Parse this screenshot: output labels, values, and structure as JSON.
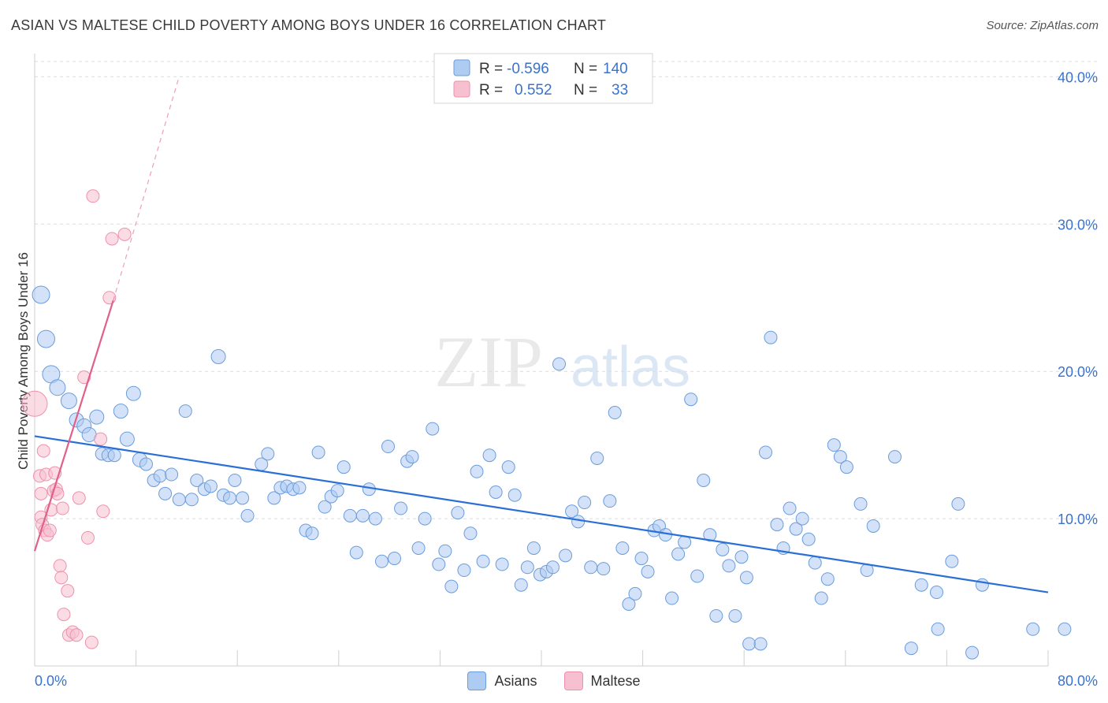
{
  "header": {
    "title": "ASIAN VS MALTESE CHILD POVERTY AMONG BOYS UNDER 16 CORRELATION CHART",
    "source": "Source: ZipAtlas.com"
  },
  "watermark": {
    "zip": "ZIP",
    "atlas": "atlas"
  },
  "legend_stats": [
    {
      "r_label": "R =",
      "r_value": "-0.596",
      "n_label": "N =",
      "n_value": "140"
    },
    {
      "r_label": "R =",
      "r_value": "0.552",
      "n_label": "N =",
      "n_value": "33"
    }
  ],
  "legend_bottom": [
    {
      "label": "Asians"
    },
    {
      "label": "Maltese"
    }
  ],
  "colors": {
    "asian_fill": "#aecbf2",
    "asian_stroke": "#6a9ddc",
    "asian_line": "#2a6fd6",
    "maltese_fill": "#f7c0d0",
    "maltese_stroke": "#ee91ad",
    "maltese_line": "#e0608a",
    "tick_text": "#3a73cc",
    "grid": "#dcdcdc"
  },
  "chart_data": {
    "type": "scatter",
    "title": "ASIAN VS MALTESE CHILD POVERTY AMONG BOYS UNDER 16 CORRELATION CHART",
    "xlabel": "",
    "ylabel": "Child Poverty Among Boys Under 16",
    "xlim": [
      0,
      80
    ],
    "ylim": [
      0,
      42
    ],
    "x_tick_labels": [
      "0.0%",
      "80.0%"
    ],
    "y_ticks": [
      10,
      20,
      30,
      40
    ],
    "y_tick_labels": [
      "10.0%",
      "20.0%",
      "30.0%",
      "40.0%"
    ],
    "grid": "horizontal dashed",
    "legend": "top-center and bottom",
    "series": [
      {
        "name": "Asians",
        "trend": {
          "x": [
            0,
            80
          ],
          "y": [
            15.6,
            5.0
          ]
        },
        "points": [
          [
            0.5,
            25.2,
            11
          ],
          [
            0.9,
            22.2,
            11
          ],
          [
            1.3,
            19.8,
            11
          ],
          [
            1.8,
            18.9,
            10
          ],
          [
            2.7,
            18.0,
            10
          ],
          [
            3.3,
            16.7,
            9
          ],
          [
            3.9,
            16.3,
            9
          ],
          [
            4.3,
            15.7,
            9
          ],
          [
            4.9,
            16.9,
            9
          ],
          [
            5.3,
            14.4,
            8
          ],
          [
            5.8,
            14.3,
            8
          ],
          [
            6.3,
            14.3,
            8
          ],
          [
            6.8,
            17.3,
            9
          ],
          [
            7.3,
            15.4,
            9
          ],
          [
            7.8,
            18.5,
            9
          ],
          [
            8.3,
            14.0,
            9
          ],
          [
            8.8,
            13.7,
            8
          ],
          [
            9.4,
            12.6,
            8
          ],
          [
            9.9,
            12.9,
            8
          ],
          [
            10.3,
            11.7,
            8
          ],
          [
            10.8,
            13.0,
            8
          ],
          [
            11.4,
            11.3,
            8
          ],
          [
            11.9,
            17.3,
            8
          ],
          [
            12.4,
            11.3,
            8
          ],
          [
            12.8,
            12.6,
            8
          ],
          [
            13.4,
            12.0,
            8
          ],
          [
            13.9,
            12.2,
            8
          ],
          [
            14.5,
            21.0,
            9
          ],
          [
            14.9,
            11.6,
            8
          ],
          [
            15.4,
            11.4,
            8
          ],
          [
            15.8,
            12.6,
            8
          ],
          [
            16.4,
            11.4,
            8
          ],
          [
            16.8,
            10.2,
            8
          ],
          [
            17.9,
            13.7,
            8
          ],
          [
            18.4,
            14.4,
            8
          ],
          [
            18.9,
            11.4,
            8
          ],
          [
            19.4,
            12.1,
            8
          ],
          [
            19.9,
            12.2,
            8
          ],
          [
            20.4,
            12.0,
            8
          ],
          [
            20.9,
            12.1,
            8
          ],
          [
            21.4,
            9.2,
            8
          ],
          [
            21.9,
            9.0,
            8
          ],
          [
            22.4,
            14.5,
            8
          ],
          [
            22.9,
            10.8,
            8
          ],
          [
            23.4,
            11.5,
            8
          ],
          [
            23.9,
            11.9,
            8
          ],
          [
            24.4,
            13.5,
            8
          ],
          [
            24.9,
            10.2,
            8
          ],
          [
            25.4,
            7.7,
            8
          ],
          [
            25.9,
            10.2,
            8
          ],
          [
            26.4,
            12.0,
            8
          ],
          [
            26.9,
            10.0,
            8
          ],
          [
            27.4,
            7.1,
            8
          ],
          [
            27.9,
            14.9,
            8
          ],
          [
            28.4,
            7.3,
            8
          ],
          [
            28.9,
            10.7,
            8
          ],
          [
            29.4,
            13.9,
            8
          ],
          [
            29.8,
            14.2,
            8
          ],
          [
            30.3,
            8.0,
            8
          ],
          [
            30.8,
            10.0,
            8
          ],
          [
            31.4,
            16.1,
            8
          ],
          [
            31.9,
            6.9,
            8
          ],
          [
            32.4,
            7.8,
            8
          ],
          [
            32.9,
            5.4,
            8
          ],
          [
            33.4,
            10.4,
            8
          ],
          [
            33.9,
            6.5,
            8
          ],
          [
            34.4,
            9.0,
            8
          ],
          [
            34.9,
            13.2,
            8
          ],
          [
            35.4,
            7.1,
            8
          ],
          [
            35.9,
            14.3,
            8
          ],
          [
            36.4,
            11.8,
            8
          ],
          [
            36.9,
            6.9,
            8
          ],
          [
            37.4,
            13.5,
            8
          ],
          [
            37.9,
            11.6,
            8
          ],
          [
            38.4,
            5.5,
            8
          ],
          [
            38.9,
            6.7,
            8
          ],
          [
            39.4,
            8.0,
            8
          ],
          [
            39.9,
            6.2,
            8
          ],
          [
            40.4,
            6.4,
            8
          ],
          [
            40.9,
            6.7,
            8
          ],
          [
            41.4,
            20.5,
            8
          ],
          [
            41.9,
            7.5,
            8
          ],
          [
            42.4,
            10.5,
            8
          ],
          [
            42.9,
            9.8,
            8
          ],
          [
            43.4,
            11.1,
            8
          ],
          [
            43.9,
            6.7,
            8
          ],
          [
            44.4,
            14.1,
            8
          ],
          [
            44.9,
            6.6,
            8
          ],
          [
            45.4,
            11.2,
            8
          ],
          [
            45.8,
            17.2,
            8
          ],
          [
            46.4,
            8.0,
            8
          ],
          [
            46.9,
            4.2,
            8
          ],
          [
            47.4,
            4.9,
            8
          ],
          [
            47.9,
            7.3,
            8
          ],
          [
            48.4,
            6.4,
            8
          ],
          [
            48.9,
            9.2,
            8
          ],
          [
            49.3,
            9.5,
            8
          ],
          [
            49.8,
            8.9,
            8
          ],
          [
            50.3,
            4.6,
            8
          ],
          [
            50.8,
            7.6,
            8
          ],
          [
            51.3,
            8.4,
            8
          ],
          [
            51.8,
            18.1,
            8
          ],
          [
            52.3,
            6.1,
            8
          ],
          [
            52.8,
            12.6,
            8
          ],
          [
            53.3,
            8.9,
            8
          ],
          [
            53.8,
            3.4,
            8
          ],
          [
            54.3,
            7.9,
            8
          ],
          [
            54.8,
            6.8,
            8
          ],
          [
            55.3,
            3.4,
            8
          ],
          [
            55.8,
            7.4,
            8
          ],
          [
            56.2,
            6.0,
            8
          ],
          [
            56.4,
            1.5,
            8
          ],
          [
            57.3,
            1.5,
            8
          ],
          [
            57.7,
            14.5,
            8
          ],
          [
            58.1,
            22.3,
            8
          ],
          [
            58.6,
            9.6,
            8
          ],
          [
            59.1,
            8.0,
            8
          ],
          [
            59.6,
            10.7,
            8
          ],
          [
            60.1,
            9.3,
            8
          ],
          [
            60.6,
            10.0,
            8
          ],
          [
            61.1,
            8.6,
            8
          ],
          [
            61.6,
            7.0,
            8
          ],
          [
            62.1,
            4.6,
            8
          ],
          [
            62.6,
            5.9,
            8
          ],
          [
            63.1,
            15.0,
            8
          ],
          [
            63.6,
            14.2,
            8
          ],
          [
            64.1,
            13.5,
            8
          ],
          [
            65.2,
            11.0,
            8
          ],
          [
            65.7,
            6.5,
            8
          ],
          [
            66.2,
            9.5,
            8
          ],
          [
            67.9,
            14.2,
            8
          ],
          [
            69.2,
            1.2,
            8
          ],
          [
            70.0,
            5.5,
            8
          ],
          [
            71.3,
            2.5,
            8
          ],
          [
            71.2,
            5.0,
            8
          ],
          [
            72.4,
            7.1,
            8
          ],
          [
            72.9,
            11.0,
            8
          ],
          [
            74.0,
            0.9,
            8
          ],
          [
            74.8,
            5.5,
            8
          ],
          [
            78.8,
            2.5,
            8
          ],
          [
            81.3,
            2.5,
            8
          ]
        ]
      },
      {
        "name": "Maltese",
        "trend": {
          "x": [
            0,
            6.2
          ],
          "y": [
            7.8,
            24.8
          ]
        },
        "trend_extension": {
          "x": [
            6.2,
            11.4
          ],
          "y": [
            24.8,
            40.0
          ]
        },
        "points": [
          [
            0.0,
            17.8,
            16
          ],
          [
            0.4,
            12.9,
            8
          ],
          [
            0.5,
            11.7,
            8
          ],
          [
            0.5,
            10.1,
            8
          ],
          [
            0.6,
            9.6,
            8
          ],
          [
            0.7,
            14.6,
            8
          ],
          [
            0.8,
            9.2,
            8
          ],
          [
            0.9,
            13.0,
            8
          ],
          [
            1.0,
            8.9,
            8
          ],
          [
            1.2,
            9.2,
            8
          ],
          [
            1.3,
            10.6,
            8
          ],
          [
            1.5,
            11.9,
            8
          ],
          [
            1.6,
            13.1,
            8
          ],
          [
            1.7,
            12.0,
            8
          ],
          [
            1.8,
            11.7,
            8
          ],
          [
            2.0,
            6.8,
            8
          ],
          [
            2.1,
            6.0,
            8
          ],
          [
            2.2,
            10.7,
            8
          ],
          [
            2.3,
            3.5,
            8
          ],
          [
            2.6,
            5.1,
            8
          ],
          [
            2.7,
            2.1,
            8
          ],
          [
            3.0,
            2.3,
            8
          ],
          [
            3.3,
            2.1,
            8
          ],
          [
            3.5,
            11.4,
            8
          ],
          [
            3.9,
            19.6,
            8
          ],
          [
            4.2,
            8.7,
            8
          ],
          [
            4.5,
            1.6,
            8
          ],
          [
            4.6,
            31.9,
            8
          ],
          [
            5.2,
            15.4,
            8
          ],
          [
            5.4,
            10.5,
            8
          ],
          [
            5.9,
            25.0,
            8
          ],
          [
            6.1,
            29.0,
            8
          ],
          [
            7.1,
            29.3,
            8
          ]
        ]
      }
    ]
  }
}
